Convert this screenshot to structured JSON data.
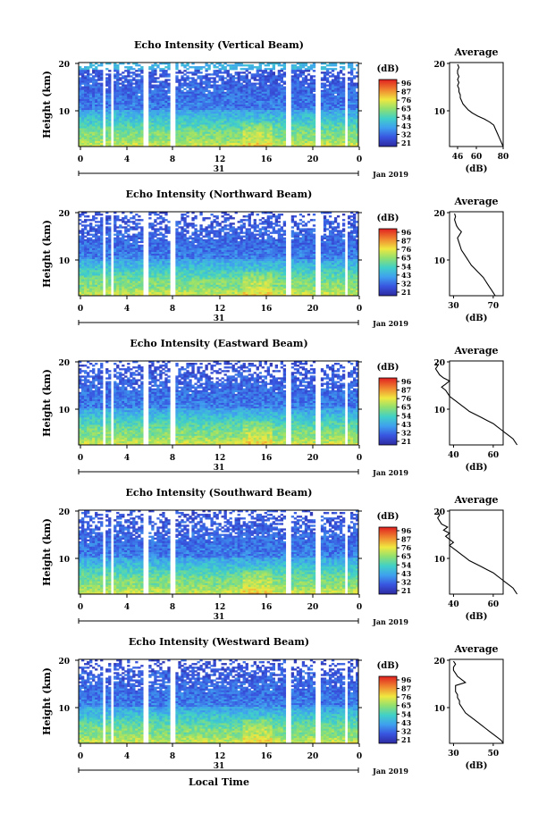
{
  "chart_data": [
    {
      "type": "heatmap",
      "title": "Echo Intensity (Vertical Beam)",
      "ylabel": "Height (km)",
      "yticks": [
        "20",
        "10"
      ],
      "xticks": [
        "0",
        "4",
        "8",
        "12",
        "16",
        "20",
        "0"
      ],
      "date_day": "31",
      "date_label": "Jan 2019",
      "colorbar_unit": "(dB)",
      "colorbar_ticks": [
        "96",
        "87",
        "76",
        "65",
        "54",
        "43",
        "32",
        "21"
      ],
      "profile": {
        "title": "Average",
        "xlabel": "(dB)",
        "xticks": [
          "46",
          "60",
          "80"
        ],
        "yticks": [
          "20",
          "10"
        ],
        "values_db": [
          80,
          79,
          78,
          77,
          76,
          75,
          74,
          73,
          70,
          66,
          61,
          57,
          54,
          52,
          50,
          49,
          48,
          48,
          47,
          47,
          46,
          47,
          46,
          47,
          46,
          46,
          47,
          46
        ]
      }
    },
    {
      "type": "heatmap",
      "title": "Echo Intensity (Northward Beam)",
      "ylabel": "Height (km)",
      "yticks": [
        "20",
        "10"
      ],
      "xticks": [
        "0",
        "4",
        "8",
        "12",
        "16",
        "20",
        "0"
      ],
      "date_day": "31",
      "date_label": "Jan 2019",
      "colorbar_unit": "(dB)",
      "colorbar_ticks": [
        "96",
        "87",
        "76",
        "65",
        "54",
        "43",
        "32",
        "21"
      ],
      "profile": {
        "title": "Average",
        "xlabel": "(dB)",
        "xticks": [
          "30",
          "70"
        ],
        "yticks": [
          "20",
          "10"
        ],
        "values_db": [
          72,
          70,
          68,
          66,
          64,
          62,
          60,
          57,
          54,
          51,
          48,
          46,
          44,
          42,
          40,
          38,
          37,
          36,
          35,
          34,
          36,
          38,
          35,
          33,
          32,
          31,
          32,
          31
        ]
      }
    },
    {
      "type": "heatmap",
      "title": "Echo Intensity (Eastward Beam)",
      "ylabel": "Height (km)",
      "yticks": [
        "20",
        "10"
      ],
      "xticks": [
        "0",
        "4",
        "8",
        "12",
        "16",
        "20",
        "0"
      ],
      "date_day": "31",
      "date_label": "Jan 2019",
      "colorbar_unit": "(dB)",
      "colorbar_ticks": [
        "96",
        "87",
        "76",
        "65",
        "54",
        "43",
        "32",
        "21"
      ],
      "profile": {
        "title": "Average",
        "xlabel": "(dB)",
        "xticks": [
          "40",
          "60"
        ],
        "yticks": [
          "20",
          "10"
        ],
        "values_db": [
          72,
          71,
          70,
          68,
          66,
          64,
          62,
          60,
          57,
          54,
          51,
          48,
          46,
          44,
          42,
          40,
          38,
          37,
          36,
          34,
          36,
          38,
          35,
          33,
          32,
          31,
          32,
          31
        ]
      }
    },
    {
      "type": "heatmap",
      "title": "Echo Intensity (Southward Beam)",
      "ylabel": "Height (km)",
      "yticks": [
        "20",
        "10"
      ],
      "xticks": [
        "0",
        "4",
        "8",
        "12",
        "16",
        "20",
        "0"
      ],
      "date_day": "31",
      "date_label": "Jan 2019",
      "colorbar_unit": "(dB)",
      "colorbar_ticks": [
        "96",
        "87",
        "76",
        "65",
        "54",
        "43",
        "32",
        "21"
      ],
      "profile": {
        "title": "Average",
        "xlabel": "(dB)",
        "xticks": [
          "40",
          "60"
        ],
        "yticks": [
          "20",
          "10"
        ],
        "values_db": [
          72,
          71,
          70,
          68,
          66,
          64,
          62,
          60,
          57,
          54,
          51,
          48,
          46,
          44,
          42,
          40,
          38,
          40,
          38,
          36,
          38,
          35,
          37,
          34,
          33,
          32,
          33,
          32
        ]
      }
    },
    {
      "type": "heatmap",
      "title": "Echo Intensity (Westward Beam)",
      "ylabel": "Height (km)",
      "yticks": [
        "20",
        "10"
      ],
      "xticks": [
        "0",
        "4",
        "8",
        "12",
        "16",
        "20",
        "0"
      ],
      "date_day": "31",
      "date_label": "Jan 2019",
      "colorbar_unit": "(dB)",
      "colorbar_ticks": [
        "96",
        "87",
        "76",
        "65",
        "54",
        "43",
        "32",
        "21"
      ],
      "profile": {
        "title": "Average",
        "xlabel": "(dB)",
        "xticks": [
          "30",
          "50"
        ],
        "yticks": [
          "20",
          "10"
        ],
        "values_db": [
          55,
          54,
          52,
          50,
          48,
          46,
          44,
          42,
          40,
          38,
          36,
          35,
          34,
          33,
          33,
          32,
          32,
          31,
          31,
          31,
          36,
          34,
          32,
          31,
          30,
          30,
          31,
          30
        ]
      }
    }
  ],
  "footer": {
    "xlabel": "Local Time"
  }
}
